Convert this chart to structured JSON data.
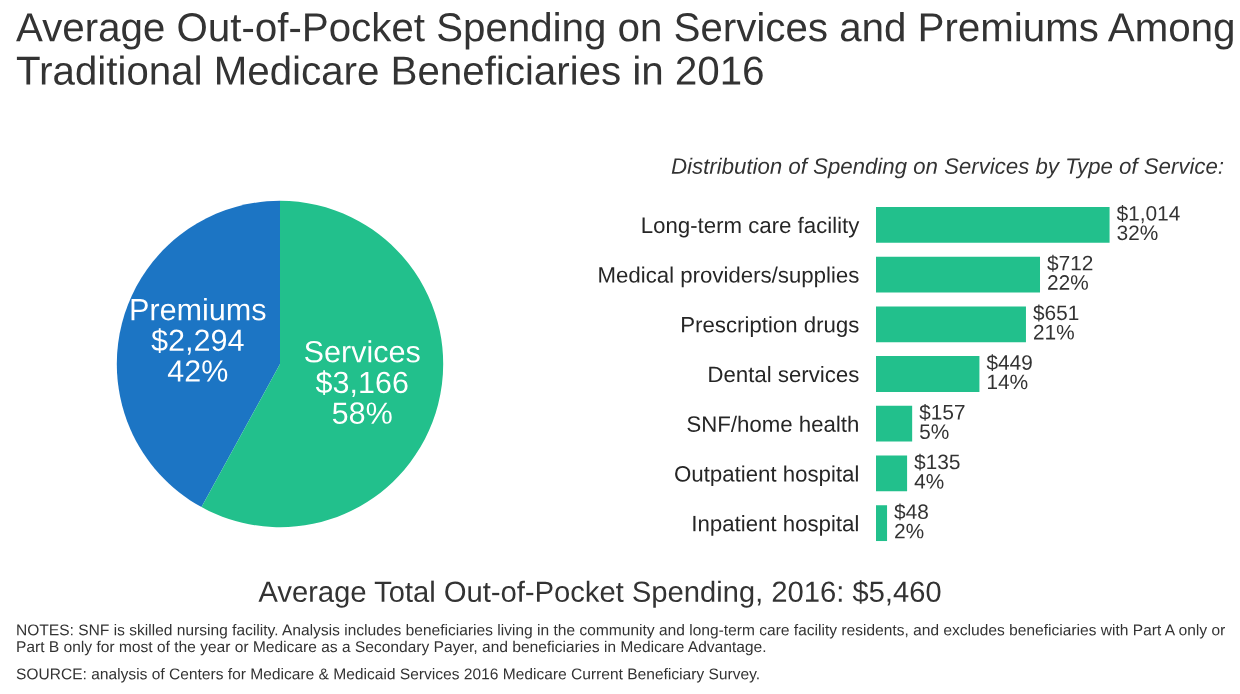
{
  "chart_data": [
    {
      "type": "pie",
      "title": "Average Out-of-Pocket Spending on Services and Premiums Among Traditional Medicare Beneficiaries in 2016",
      "categories": [
        "Premiums",
        "Services"
      ],
      "values": [
        2294,
        3166
      ],
      "colors": [
        "#1c75c4",
        "#22c08c"
      ],
      "value_labels": [
        "$2,294\n42%",
        "$3,166\n58%"
      ],
      "annotations": [
        "Average Total Out-of-Pocket Spending, 2016: $5,460",
        "NOTES: SNF is skilled nursing facility. Analysis includes beneficiaries living in the community and long-term care facility residents, and excludes beneficiaries with Part A only or Part B only for most of the year or Medicare as a Secondary Payer, and beneficiaries in Medicare Advantage.",
        "SOURCE: analysis of Centers for Medicare & Medicaid Services 2016 Medicare Current Beneficiary Survey."
      ]
    },
    {
      "type": "bar",
      "orientation": "horizontal",
      "subtitle": "Distribution of Spending on Services by Type of Service:",
      "categories": [
        "Long-term care facility",
        "Medical providers/supplies",
        "Prescription drugs",
        "Dental services",
        "SNF/home health",
        "Outpatient hospital",
        "Inpatient hospital"
      ],
      "values": [
        1014,
        712,
        651,
        449,
        157,
        135,
        48
      ],
      "colors": [
        "#22c08c",
        "#22c08c",
        "#22c08c",
        "#22c08c",
        "#22c08c",
        "#22c08c",
        "#22c08c"
      ],
      "value_labels": [
        "$1,014\n32%",
        "$712\n22%",
        "$651\n21%",
        "$449\n14%",
        "$157\n5%",
        "$135\n4%",
        "$48\n2%"
      ]
    }
  ]
}
